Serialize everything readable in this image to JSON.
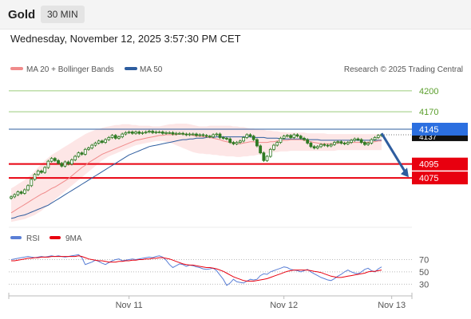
{
  "header": {
    "title": "Gold",
    "timeframe": "30 MIN",
    "datetime": "Wednesday, November 12, 2025 3:57:30 PM CET",
    "credit": "Research © 2025 Trading Central"
  },
  "colors": {
    "ma20": "#f08b8b",
    "ma50": "#2e5d9f",
    "bollinger_fill": "#fde3e3",
    "candle": "#2f7a23",
    "support": "#e8000f",
    "resistance": "#9acc7a",
    "pivot": "#2e5d9f",
    "rsi": "#5a7fd6",
    "rsi_ma": "#e8000f"
  },
  "chart_data": [
    {
      "type": "candlestick",
      "title": "",
      "legend": [
        {
          "name": "MA 20 + Bollinger Bands",
          "color": "#f08b8b"
        },
        {
          "name": "MA 50",
          "color": "#2e5d9f"
        }
      ],
      "legend_position": "top-left",
      "y_ticks": [
        4200,
        4170,
        4137
      ],
      "x_labels": [
        {
          "label": "Nov 11",
          "index": 35
        },
        {
          "label": "Nov 12",
          "index": 81
        },
        {
          "label": "Nov 13",
          "index": 113
        }
      ],
      "ylim": [
        4010,
        4225
      ],
      "levels": [
        {
          "label": "4200",
          "value": 4200,
          "kind": "resistance"
        },
        {
          "label": "4170",
          "value": 4170,
          "kind": "resistance"
        },
        {
          "label": "4145",
          "value": 4145,
          "kind": "pivot"
        },
        {
          "label": "4095",
          "value": 4095,
          "kind": "support"
        },
        {
          "label": "4075",
          "value": 4075,
          "kind": "support"
        }
      ],
      "last_price": 4137,
      "forecast_arrow": {
        "from": 4139,
        "to": 4076
      },
      "close": [
        4048,
        4051,
        4055,
        4053,
        4058,
        4064,
        4073,
        4080,
        4085,
        4083,
        4090,
        4099,
        4103,
        4100,
        4096,
        4092,
        4098,
        4095,
        4101,
        4106,
        4111,
        4109,
        4116,
        4118,
        4122,
        4125,
        4128,
        4126,
        4130,
        4133,
        4136,
        4132,
        4134,
        4138,
        4140,
        4141,
        4139,
        4141,
        4139,
        4140,
        4141,
        4142,
        4140,
        4141,
        4141,
        4139,
        4140,
        4140,
        4138,
        4139,
        4139,
        4138,
        4137,
        4138,
        4138,
        4136,
        4137,
        4136,
        4135,
        4134,
        4137,
        4138,
        4133,
        4132,
        4131,
        4126,
        4124,
        4126,
        4128,
        4133,
        4137,
        4135,
        4130,
        4121,
        4111,
        4100,
        4106,
        4116,
        4122,
        4126,
        4132,
        4135,
        4136,
        4133,
        4137,
        4135,
        4132,
        4130,
        4125,
        4120,
        4118,
        4120,
        4123,
        4122,
        4121,
        4123,
        4126,
        4127,
        4125,
        4124,
        4126,
        4129,
        4131,
        4130,
        4126,
        4123,
        4125,
        4130,
        4133,
        4136,
        4137
      ],
      "ma20": [
        4025,
        4028,
        4031,
        4034,
        4037,
        4040,
        4043,
        4046,
        4049,
        4052,
        4054,
        4057,
        4060,
        4062,
        4065,
        4068,
        4071,
        4074,
        4078,
        4082,
        4086,
        4090,
        4093,
        4097,
        4100,
        4103,
        4106,
        4109,
        4111,
        4113,
        4115,
        4117,
        4119,
        4121,
        4123,
        4125,
        4127,
        4129,
        4130,
        4131,
        4132,
        4133,
        4134,
        4135,
        4136,
        4136,
        4137,
        4137,
        4137,
        4137,
        4138,
        4138,
        4137,
        4137,
        4136,
        4135,
        4135,
        4134,
        4134,
        4133,
        4132,
        4131,
        4130,
        4128,
        4127,
        4126,
        4125,
        4124,
        4124,
        4125,
        4126,
        4127,
        4127,
        4126,
        4126,
        4126,
        4126,
        4127,
        4127,
        4128,
        4128,
        4129,
        4129,
        4130,
        4130,
        4130,
        4130,
        4129,
        4128,
        4127,
        4126,
        4125,
        4124,
        4124,
        4124,
        4124,
        4124,
        4125,
        4125,
        4125,
        4125,
        4126,
        4126,
        4126,
        4126,
        4126,
        4126,
        4127,
        4127,
        4128,
        4128
      ],
      "ma50": [
        4017,
        4018,
        4020,
        4021,
        4022,
        4024,
        4026,
        4028,
        4030,
        4032,
        4034,
        4036,
        4039,
        4042,
        4045,
        4048,
        4051,
        4054,
        4057,
        4060,
        4063,
        4066,
        4069,
        4072,
        4075,
        4078,
        4081,
        4084,
        4087,
        4090,
        4093,
        4096,
        4099,
        4102,
        4105,
        4108,
        4110,
        4112,
        4114,
        4116,
        4118,
        4120,
        4121,
        4122,
        4123,
        4124,
        4125,
        4126,
        4127,
        4128,
        4129,
        4130,
        4130,
        4131,
        4131,
        4132,
        4132,
        4132,
        4133,
        4133,
        4133,
        4134,
        4134,
        4134,
        4134,
        4134,
        4134,
        4134,
        4134,
        4134,
        4134,
        4134,
        4133,
        4133,
        4133,
        4133,
        4132,
        4132,
        4132,
        4132,
        4131,
        4131,
        4131,
        4131,
        4131,
        4131,
        4131,
        4131,
        4130,
        4130,
        4130,
        4130,
        4129,
        4129,
        4129,
        4129,
        4129,
        4129,
        4129,
        4129,
        4129,
        4129,
        4129,
        4129,
        4129,
        4129,
        4129,
        4129,
        4129,
        4129,
        4129
      ],
      "bb_upper": [
        4060,
        4063,
        4066,
        4069,
        4072,
        4076,
        4080,
        4085,
        4090,
        4095,
        4100,
        4104,
        4108,
        4111,
        4114,
        4117,
        4120,
        4123,
        4126,
        4129,
        4132,
        4135,
        4138,
        4140,
        4142,
        4144,
        4145,
        4147,
        4148,
        4149,
        4150,
        4151,
        4151,
        4152,
        4152,
        4152,
        4151,
        4151,
        4150,
        4150,
        4150,
        4150,
        4149,
        4149,
        4149,
        4150,
        4151,
        4152,
        4152,
        4153,
        4153,
        4153,
        4153,
        4152,
        4151,
        4150,
        4149,
        4149,
        4149,
        4150,
        4150,
        4150,
        4150,
        4150,
        4150,
        4150,
        4149,
        4149,
        4148,
        4148,
        4147,
        4146,
        4146,
        4145,
        4144,
        4144,
        4143,
        4143,
        4142,
        4142,
        4141,
        4141,
        4140,
        4140,
        4140,
        4140,
        4140,
        4140,
        4139,
        4139,
        4139,
        4139,
        4139,
        4139,
        4138,
        4138,
        4138,
        4138,
        4138,
        4138,
        4138,
        4138,
        4138,
        4138,
        4138,
        4138,
        4138,
        4138,
        4138,
        4138,
        4138
      ],
      "bb_lower": [
        4012,
        4013,
        4014,
        4015,
        4016,
        4018,
        4020,
        4022,
        4025,
        4028,
        4032,
        4036,
        4040,
        4044,
        4048,
        4052,
        4056,
        4060,
        4064,
        4068,
        4072,
        4076,
        4080,
        4084,
        4088,
        4092,
        4096,
        4100,
        4103,
        4106,
        4108,
        4110,
        4112,
        4114,
        4116,
        4118,
        4120,
        4122,
        4123,
        4124,
        4125,
        4126,
        4127,
        4128,
        4128,
        4128,
        4127,
        4126,
        4124,
        4122,
        4120,
        4118,
        4116,
        4114,
        4112,
        4111,
        4110,
        4110,
        4109,
        4109,
        4108,
        4108,
        4107,
        4107,
        4106,
        4106,
        4106,
        4105,
        4105,
        4106,
        4106,
        4107,
        4107,
        4108,
        4109,
        4110,
        4110,
        4111,
        4112,
        4112,
        4113,
        4113,
        4113,
        4114,
        4114,
        4114,
        4114,
        4114,
        4114,
        4114,
        4114,
        4114,
        4114,
        4114,
        4114,
        4114,
        4114,
        4115,
        4115,
        4115,
        4115,
        4115,
        4115,
        4115,
        4115,
        4115,
        4115,
        4115,
        4115,
        4115,
        4115
      ]
    },
    {
      "type": "line",
      "title": "",
      "legend": [
        {
          "name": "RSI",
          "color": "#5a7fd6"
        },
        {
          "name": "9MA",
          "color": "#e8000f"
        }
      ],
      "y_ticks": [
        70,
        50,
        30
      ],
      "ylim": [
        15,
        90
      ],
      "rsi": [
        70,
        71,
        72,
        73,
        74,
        75,
        74,
        73,
        74,
        75,
        74,
        75,
        76,
        75,
        76,
        75,
        74,
        75,
        76,
        77,
        78,
        73,
        62,
        64,
        66,
        69,
        67,
        64,
        62,
        65,
        68,
        70,
        71,
        68,
        69,
        70,
        71,
        70,
        71,
        72,
        73,
        74,
        73,
        75,
        76,
        74,
        69,
        62,
        57,
        60,
        63,
        62,
        59,
        61,
        60,
        58,
        57,
        55,
        54,
        55,
        56,
        52,
        45,
        38,
        28,
        32,
        38,
        34,
        33,
        32,
        35,
        38,
        37,
        38,
        44,
        47,
        46,
        50,
        52,
        54,
        56,
        58,
        57,
        54,
        53,
        52,
        50,
        52,
        54,
        50,
        47,
        44,
        41,
        39,
        37,
        36,
        39,
        43,
        46,
        50,
        53,
        50,
        48,
        47,
        50,
        54,
        56,
        52,
        50,
        55,
        58
      ],
      "rsi_ma": [
        68,
        68,
        69,
        70,
        71,
        72,
        72,
        73,
        73,
        74,
        74,
        74,
        75,
        75,
        75,
        75,
        75,
        75,
        75,
        75,
        76,
        75,
        73,
        71,
        70,
        69,
        68,
        68,
        67,
        66,
        66,
        66,
        67,
        67,
        68,
        68,
        69,
        69,
        70,
        70,
        71,
        71,
        72,
        72,
        73,
        73,
        72,
        71,
        69,
        67,
        65,
        63,
        62,
        61,
        61,
        60,
        59,
        58,
        57,
        57,
        56,
        55,
        53,
        51,
        48,
        45,
        42,
        40,
        38,
        36,
        35,
        35,
        35,
        36,
        37,
        38,
        39,
        41,
        43,
        45,
        47,
        49,
        51,
        52,
        53,
        53,
        53,
        53,
        53,
        52,
        51,
        50,
        49,
        47,
        45,
        43,
        42,
        41,
        41,
        42,
        43,
        44,
        45,
        46,
        47,
        48,
        50,
        51,
        51,
        52,
        53
      ],
      "x_labels": [
        "Nov 11",
        "Nov 12",
        "Nov 13"
      ]
    }
  ]
}
